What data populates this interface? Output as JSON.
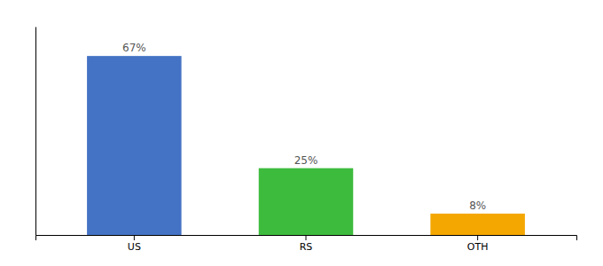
{
  "chart_data": {
    "type": "bar",
    "categories": [
      "US",
      "RS",
      "OTH"
    ],
    "values": [
      67,
      25,
      8
    ],
    "value_labels": [
      "67%",
      "25%",
      "8%"
    ],
    "colors": [
      "#4472c4",
      "#3dbb3d",
      "#f4a700"
    ],
    "ylim": [
      0,
      78
    ],
    "grid": false,
    "data_labels": true,
    "tick_labels": "x"
  }
}
